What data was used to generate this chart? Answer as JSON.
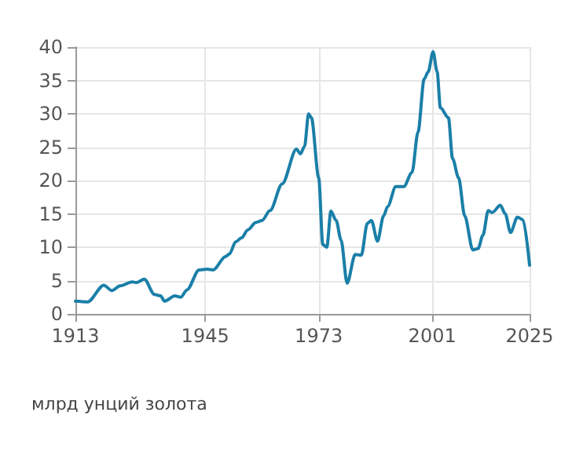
{
  "chart_data": {
    "type": "line",
    "ylabel": "млрд унций золота",
    "x": [
      1913,
      1916,
      1920,
      1922,
      1924,
      1927,
      1928,
      1930,
      1932.5,
      1934,
      1935,
      1937.5,
      1939,
      1940.5,
      1943.5,
      1945.5,
      1947,
      1950,
      1951,
      1952.5,
      1954,
      1955.5,
      1957.5,
      1959,
      1961,
      1964,
      1967.5,
      1968.5,
      1969.5,
      1970.5,
      1971.2,
      1973,
      1974,
      1975,
      1976,
      1977.3,
      1978.5,
      1980,
      1982,
      1983.5,
      1985,
      1986,
      1987.5,
      1989,
      1990,
      1992,
      1994,
      1996,
      1997.5,
      1999,
      2000,
      2001.2,
      2002.2,
      2003,
      2005,
      2006,
      2007.5,
      2009,
      2011,
      2012.3,
      2013.5,
      2014.8,
      2015.8,
      2017.8,
      2019,
      2020.3,
      2022,
      2023.4,
      2025
    ],
    "series": [
      {
        "color": "#1a7fa8",
        "values": [
          1.9,
          1.8,
          4.3,
          3.5,
          4.2,
          4.8,
          4.7,
          5.2,
          2.9,
          2.7,
          1.9,
          2.7,
          2.5,
          3.6,
          6.6,
          6.7,
          6.6,
          8.6,
          9,
          10.8,
          11.4,
          12.6,
          13.7,
          14,
          15.5,
          19.5,
          24.7,
          24,
          25.1,
          30,
          29.4,
          20.4,
          10.4,
          10,
          15.4,
          14,
          11.1,
          4.6,
          8.9,
          8.8,
          13.6,
          14,
          10.9,
          14.7,
          16.1,
          19.1,
          19.1,
          21.2,
          27.3,
          35.2,
          36.3,
          39.3,
          36.3,
          30.9,
          29.4,
          23.3,
          20.4,
          14.7,
          9.6,
          9.8,
          11.8,
          15.5,
          15.2,
          16.3,
          15,
          12.2,
          14.5,
          14.1,
          7.3
        ]
      }
    ],
    "xlim": [
      1913,
      2025
    ],
    "xticks": [
      1913,
      1945,
      1973,
      2001,
      2025
    ],
    "ylim": [
      0,
      40
    ],
    "yticks": [
      0,
      5,
      10,
      15,
      20,
      25,
      30,
      35,
      40
    ],
    "grid": true,
    "marker": "none",
    "line_style": "solid"
  }
}
